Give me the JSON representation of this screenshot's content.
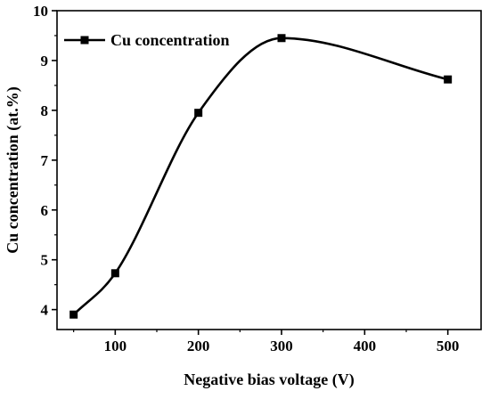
{
  "chart_data": {
    "type": "line",
    "xlabel": "Negative bias voltage (V)",
    "ylabel": "Cu concentration (at.%)",
    "xlim": [
      30,
      540
    ],
    "ylim": [
      3.6,
      10
    ],
    "x_ticks": [
      100,
      200,
      300,
      400,
      500
    ],
    "y_ticks": [
      4,
      5,
      6,
      7,
      8,
      9,
      10
    ],
    "x_tick_labels": [
      "100",
      "200",
      "300",
      "400",
      "500"
    ],
    "y_tick_labels": [
      "4",
      "5",
      "6",
      "7",
      "8",
      "9",
      "10"
    ],
    "legend_position": "top-left",
    "line_style": "smooth spline",
    "marker": "square",
    "color": "#000000",
    "series": [
      {
        "name": "Cu concentration",
        "x": [
          50,
          100,
          200,
          300,
          500
        ],
        "y": [
          3.9,
          4.73,
          7.95,
          9.45,
          8.62
        ]
      }
    ]
  }
}
